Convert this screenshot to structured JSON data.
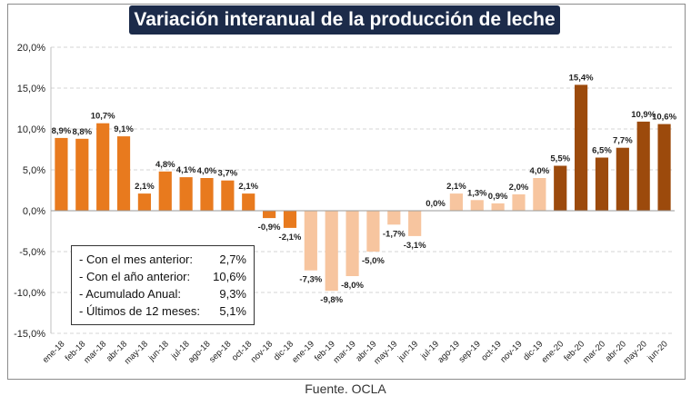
{
  "title": "Variación interanual de la producción de leche",
  "source": "Fuente. OCLA",
  "colors": {
    "orange": "#e87a1e",
    "light": "#f7c59f",
    "brown": "#9c4a0c",
    "title_bg": "#1c2b4a"
  },
  "legend": {
    "rows": [
      {
        "label": "- Con el mes anterior:",
        "value": "2,7%"
      },
      {
        "label": "- Con el año anterior:",
        "value": "10,6%"
      },
      {
        "label": "- Acumulado Anual:",
        "value": "9,3%"
      },
      {
        "label": "- Últimos de 12 meses:",
        "value": "5,1%"
      }
    ]
  },
  "chart_data": {
    "type": "bar",
    "title": "Variación interanual de la producción de leche",
    "ylim": [
      -15,
      20
    ],
    "yticks": [
      20,
      15,
      10,
      5,
      0,
      -5,
      -10,
      -15
    ],
    "ytick_labels": [
      "20,0%",
      "15,0%",
      "10,0%",
      "5,0%",
      "0,0%",
      "-5,0%",
      "-10,0%",
      "-15,0%"
    ],
    "grid": true,
    "categories": [
      "ene-18",
      "feb-18",
      "mar-18",
      "abr-18",
      "may-18",
      "jun-18",
      "jul-18",
      "ago-18",
      "sep-18",
      "oct-18",
      "nov-18",
      "dic-18",
      "ene-19",
      "feb-19",
      "mar-19",
      "abr-19",
      "may-19",
      "jun-19",
      "jul-19",
      "ago-19",
      "sep-19",
      "oct-19",
      "nov-19",
      "dic-19",
      "ene-20",
      "feb-20",
      "mar-20",
      "abr-20",
      "may-20",
      "jun-20"
    ],
    "values": [
      8.9,
      8.8,
      10.7,
      9.1,
      2.1,
      4.8,
      4.1,
      4.0,
      3.7,
      2.1,
      -0.9,
      -2.1,
      -7.3,
      -9.8,
      -8.0,
      -5.0,
      -1.7,
      -3.1,
      0.0,
      2.1,
      1.3,
      0.9,
      2.0,
      4.0,
      5.5,
      15.4,
      6.5,
      7.7,
      10.9,
      10.6
    ],
    "labels": [
      "8,9%",
      "8,8%",
      "10,7%",
      "9,1%",
      "2,1%",
      "4,8%",
      "4,1%",
      "4,0%",
      "3,7%",
      "2,1%",
      "-0,9%",
      "-2,1%",
      "-7,3%",
      "-9,8%",
      "-8,0%",
      "-5,0%",
      "-1,7%",
      "-3,1%",
      "0,0%",
      "2,1%",
      "1,3%",
      "0,9%",
      "2,0%",
      "4,0%",
      "5,5%",
      "15,4%",
      "6,5%",
      "7,7%",
      "10,9%",
      "10,6%"
    ],
    "bar_colors": [
      "orange",
      "orange",
      "orange",
      "orange",
      "orange",
      "orange",
      "orange",
      "orange",
      "orange",
      "orange",
      "orange",
      "orange",
      "light",
      "light",
      "light",
      "light",
      "light",
      "light",
      "light",
      "light",
      "light",
      "light",
      "light",
      "light",
      "brown",
      "brown",
      "brown",
      "brown",
      "brown",
      "brown"
    ]
  }
}
